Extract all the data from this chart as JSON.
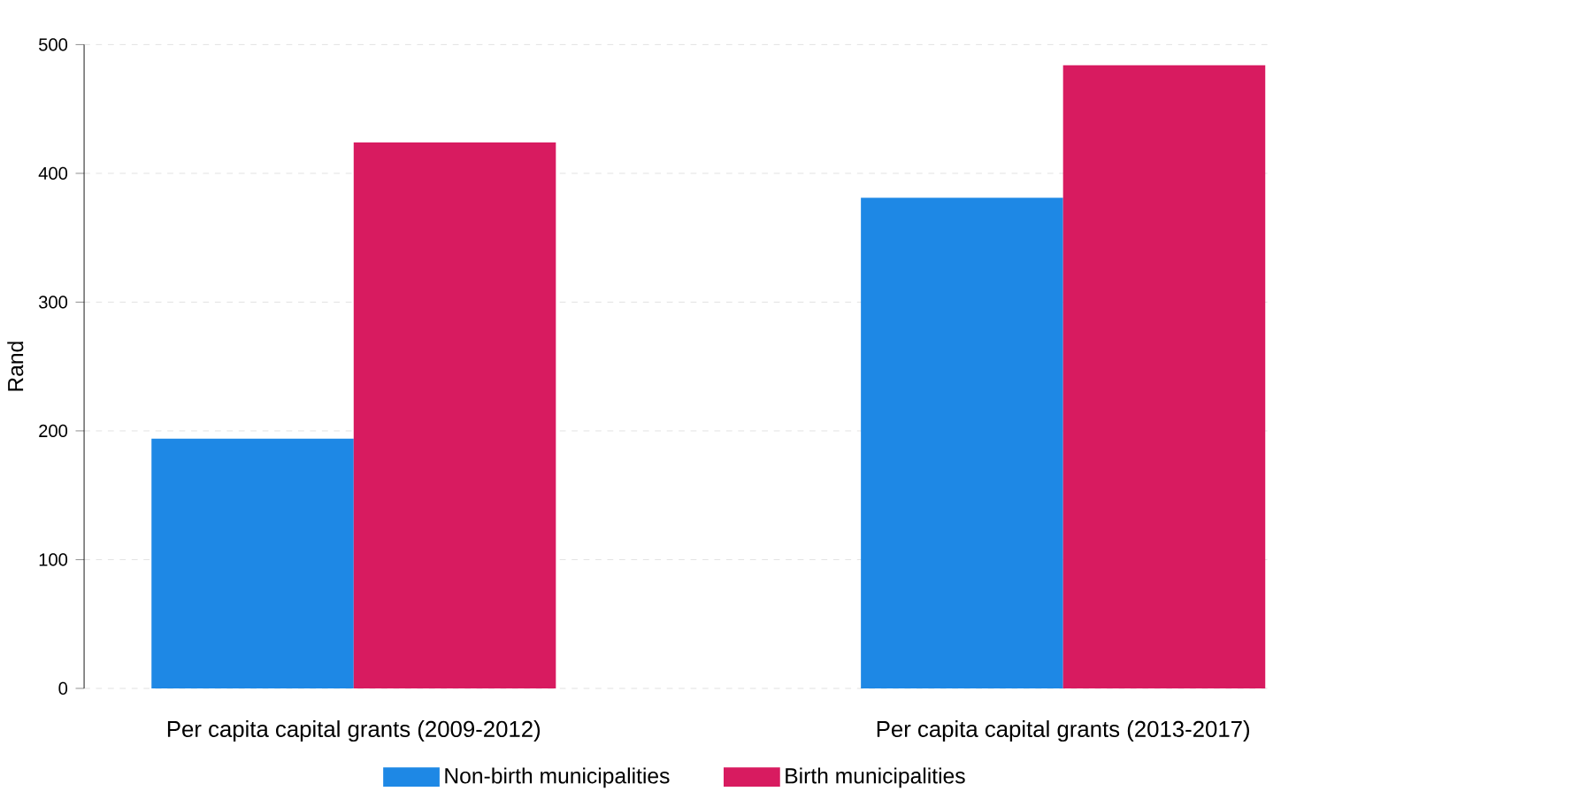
{
  "chart_data": {
    "type": "bar",
    "ylabel": "Rand",
    "categories": [
      "Per capita capital grants  (2009-2012)",
      "Per capita capital grants  (2013-2017)"
    ],
    "series": [
      {
        "name": "Non-birth municipalities",
        "color": "#1e88e5",
        "values": [
          194,
          381
        ]
      },
      {
        "name": "Birth municipalities",
        "color": "#d81b60",
        "values": [
          424,
          484
        ]
      }
    ],
    "ylim": [
      0,
      500
    ],
    "yticks": [
      0,
      100,
      200,
      300,
      400,
      500
    ],
    "grid": "y",
    "legend": "bottom"
  }
}
